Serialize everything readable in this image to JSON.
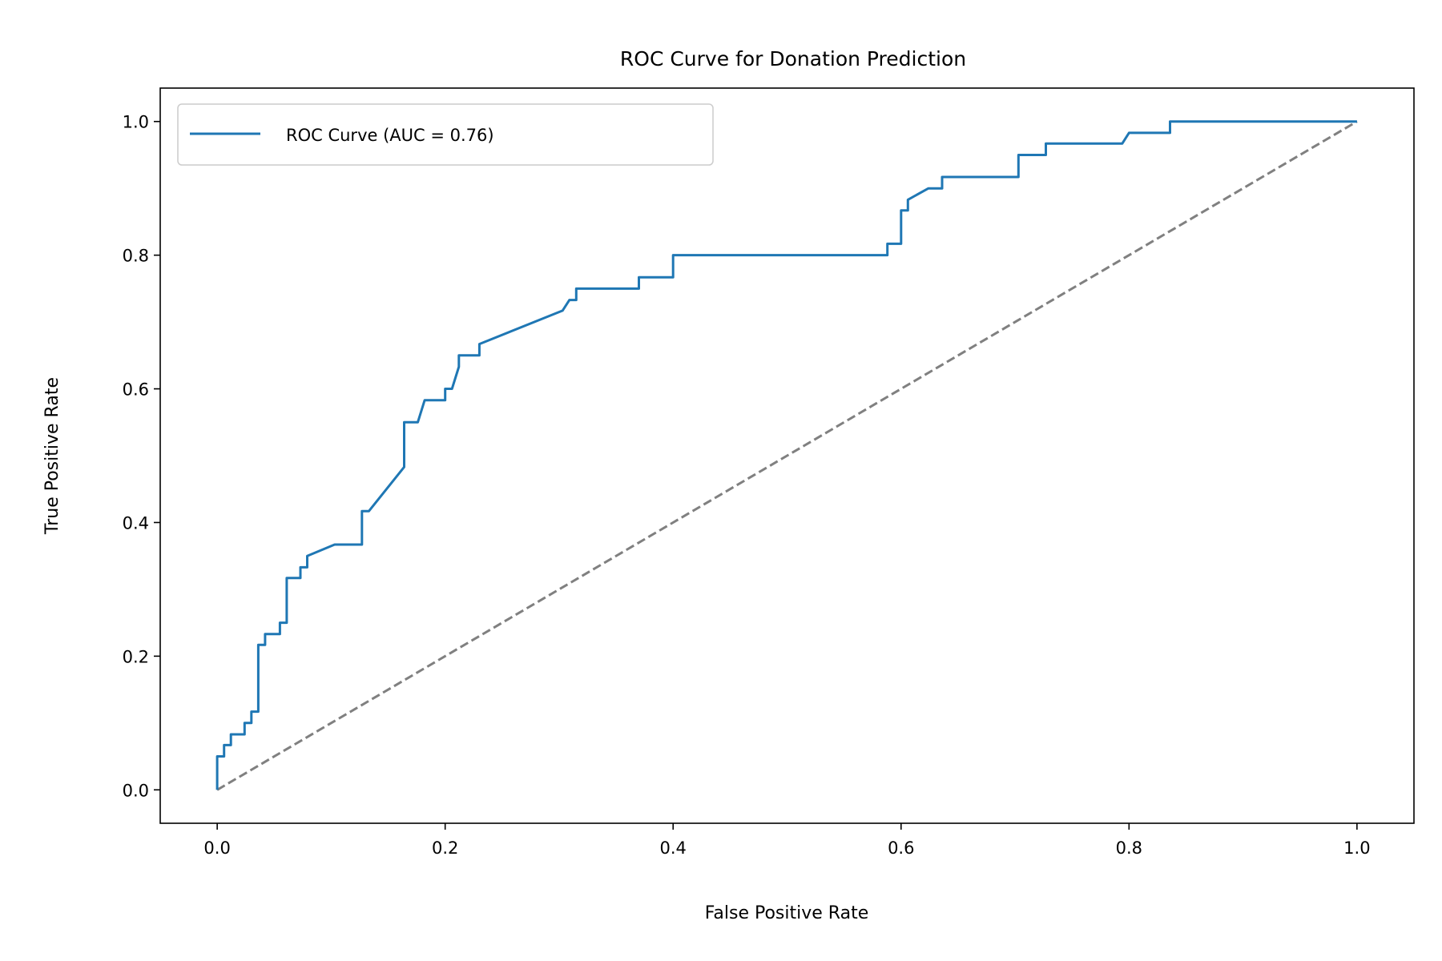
{
  "chart_data": {
    "type": "line",
    "title": "ROC Curve for Donation Prediction",
    "xlabel": "False Positive Rate",
    "ylabel": "True Positive Rate",
    "xlim": [
      -0.05,
      1.05
    ],
    "ylim": [
      -0.05,
      1.05
    ],
    "xticks": [
      0.0,
      0.2,
      0.4,
      0.6,
      0.8,
      1.0
    ],
    "yticks": [
      0.0,
      0.2,
      0.4,
      0.6,
      0.8,
      1.0
    ],
    "xtick_labels": [
      "0.0",
      "0.2",
      "0.4",
      "0.6",
      "0.8",
      "1.0"
    ],
    "ytick_labels": [
      "0.0",
      "0.2",
      "0.4",
      "0.6",
      "0.8",
      "1.0"
    ],
    "grid": false,
    "legend_position": "top-left",
    "legend_label": "ROC Curve (AUC = 0.76)",
    "series": [
      {
        "name": "ROC Curve (AUC = 0.76)",
        "color": "#1f77b4",
        "style": "solid",
        "points": [
          [
            0.0,
            0.0
          ],
          [
            0.0,
            0.05
          ],
          [
            0.006,
            0.05
          ],
          [
            0.006,
            0.067
          ],
          [
            0.012,
            0.067
          ],
          [
            0.012,
            0.083
          ],
          [
            0.024,
            0.083
          ],
          [
            0.024,
            0.1
          ],
          [
            0.03,
            0.1
          ],
          [
            0.03,
            0.117
          ],
          [
            0.036,
            0.117
          ],
          [
            0.036,
            0.217
          ],
          [
            0.042,
            0.217
          ],
          [
            0.042,
            0.233
          ],
          [
            0.055,
            0.233
          ],
          [
            0.055,
            0.25
          ],
          [
            0.061,
            0.25
          ],
          [
            0.061,
            0.317
          ],
          [
            0.073,
            0.317
          ],
          [
            0.073,
            0.333
          ],
          [
            0.079,
            0.333
          ],
          [
            0.079,
            0.35
          ],
          [
            0.103,
            0.367
          ],
          [
            0.127,
            0.367
          ],
          [
            0.127,
            0.417
          ],
          [
            0.133,
            0.417
          ],
          [
            0.164,
            0.483
          ],
          [
            0.164,
            0.55
          ],
          [
            0.176,
            0.55
          ],
          [
            0.182,
            0.583
          ],
          [
            0.2,
            0.583
          ],
          [
            0.2,
            0.6
          ],
          [
            0.206,
            0.6
          ],
          [
            0.212,
            0.633
          ],
          [
            0.212,
            0.65
          ],
          [
            0.23,
            0.65
          ],
          [
            0.23,
            0.667
          ],
          [
            0.303,
            0.717
          ],
          [
            0.309,
            0.733
          ],
          [
            0.315,
            0.733
          ],
          [
            0.315,
            0.75
          ],
          [
            0.37,
            0.75
          ],
          [
            0.37,
            0.767
          ],
          [
            0.4,
            0.767
          ],
          [
            0.4,
            0.8
          ],
          [
            0.588,
            0.8
          ],
          [
            0.588,
            0.817
          ],
          [
            0.6,
            0.817
          ],
          [
            0.6,
            0.867
          ],
          [
            0.606,
            0.867
          ],
          [
            0.606,
            0.883
          ],
          [
            0.624,
            0.9
          ],
          [
            0.636,
            0.9
          ],
          [
            0.636,
            0.917
          ],
          [
            0.703,
            0.917
          ],
          [
            0.703,
            0.95
          ],
          [
            0.727,
            0.95
          ],
          [
            0.727,
            0.967
          ],
          [
            0.794,
            0.967
          ],
          [
            0.8,
            0.983
          ],
          [
            0.836,
            0.983
          ],
          [
            0.836,
            1.0
          ],
          [
            1.0,
            1.0
          ]
        ]
      },
      {
        "name": "",
        "color": "#808080",
        "style": "dashed",
        "points": [
          [
            0.0,
            0.0
          ],
          [
            1.0,
            1.0
          ]
        ]
      }
    ]
  }
}
